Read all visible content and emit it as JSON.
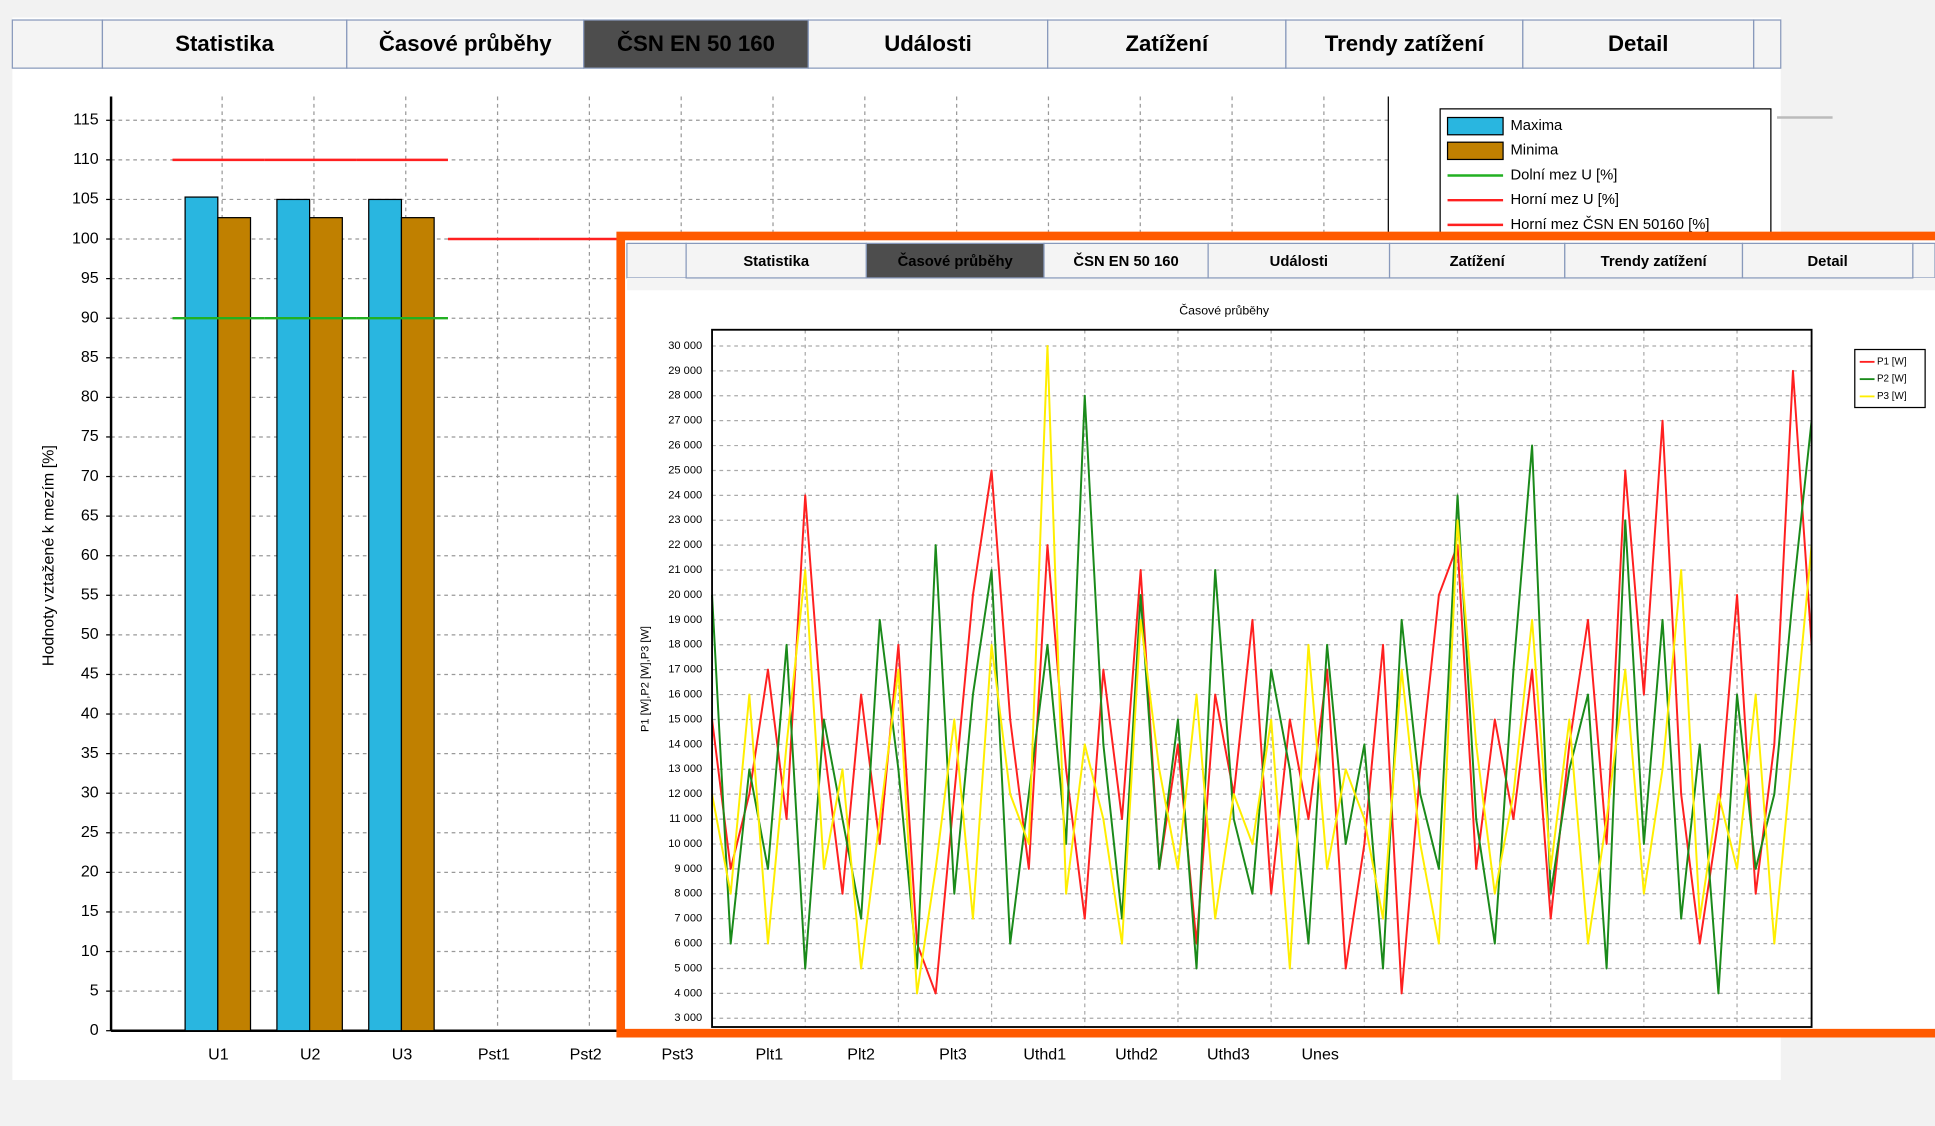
{
  "main_tabs": {
    "items": [
      "Statistika",
      "Časové průběhy",
      "ČSN EN 50 160",
      "Události",
      "Zatížení",
      "Trendy zatížení",
      "Detail"
    ],
    "active": 2
  },
  "overlay_tabs": {
    "items": [
      "Statistika",
      "Časové průběhy",
      "ČSN EN 50 160",
      "Události",
      "Zatížení",
      "Trendy zatížení",
      "Detail"
    ],
    "active": 1
  },
  "chart_data": [
    {
      "type": "bar",
      "ylabel": "Hodnoty vztažené k mezím [%]",
      "categories": [
        "U1",
        "U2",
        "U3",
        "Pst1",
        "Pst2",
        "Pst3",
        "Plt1",
        "Plt2",
        "Plt3",
        "Uthd1",
        "Uthd2",
        "Uthd3",
        "Unes"
      ],
      "series": [
        {
          "name": "Maxima",
          "type": "bar",
          "color": "#29b6e0",
          "values": [
            105.3,
            105,
            105,
            null,
            null,
            null,
            null,
            null,
            null,
            null,
            null,
            null,
            null
          ]
        },
        {
          "name": "Minima",
          "type": "bar",
          "color": "#c08000",
          "values": [
            102.7,
            102.7,
            102.7,
            null,
            null,
            null,
            null,
            null,
            null,
            null,
            null,
            null,
            null
          ]
        },
        {
          "name": "Dolní mez U [%]",
          "type": "line",
          "color": "#22b022",
          "values": [
            90,
            90,
            90,
            null,
            null,
            null,
            null,
            null,
            null,
            null,
            null,
            null,
            null
          ]
        },
        {
          "name": "Horní mez U [%]",
          "type": "line",
          "color": "#ff2020",
          "values": [
            110,
            110,
            110,
            null,
            null,
            null,
            null,
            null,
            null,
            null,
            null,
            null,
            null
          ]
        },
        {
          "name": "Horní mez ČSN EN 50160 [%]",
          "type": "line",
          "color": "#ff2020",
          "values": [
            null,
            null,
            null,
            100,
            100,
            100,
            100,
            100,
            100,
            100,
            100,
            100,
            100
          ]
        }
      ],
      "ylim": [
        0,
        118
      ],
      "yticks": [
        0,
        5,
        10,
        15,
        20,
        25,
        30,
        35,
        40,
        45,
        50,
        55,
        60,
        65,
        70,
        75,
        80,
        85,
        90,
        95,
        100,
        105,
        110,
        115
      ],
      "grid": true,
      "legend": "top-right"
    },
    {
      "type": "line",
      "title": "Časové průběhy",
      "ylabel": "P1 [W],P2 [W],P3 [W]",
      "x": [
        0,
        1,
        2,
        3,
        4,
        5,
        6,
        7,
        8,
        9,
        10,
        11,
        12,
        13,
        14,
        15,
        16,
        17,
        18,
        19,
        20,
        21,
        22,
        23,
        24,
        25,
        26,
        27,
        28,
        29,
        30,
        31,
        32,
        33,
        34,
        35,
        36,
        37,
        38,
        39,
        40,
        41,
        42,
        43,
        44,
        45,
        46,
        47,
        48,
        49,
        50,
        51,
        52,
        53,
        54,
        55,
        56,
        57,
        58,
        59
      ],
      "xlim": [
        0,
        59
      ],
      "xticks": [
        0,
        5,
        10,
        15,
        20,
        25,
        30,
        35,
        40,
        45,
        50,
        55
      ],
      "series": [
        {
          "name": "P1 [W]",
          "color": "#ff2020",
          "values": [
            15000,
            9000,
            12000,
            17000,
            11000,
            24000,
            14000,
            8000,
            16000,
            10000,
            18000,
            6000,
            4000,
            12000,
            20000,
            25000,
            15000,
            9000,
            22000,
            13000,
            7000,
            17000,
            11000,
            21000,
            9000,
            14000,
            6000,
            16000,
            12000,
            19000,
            8000,
            15000,
            11000,
            17000,
            5000,
            10000,
            18000,
            4000,
            13000,
            20000,
            22000,
            9000,
            15000,
            11000,
            17000,
            7000,
            14000,
            19000,
            10000,
            25000,
            16000,
            27000,
            12000,
            6000,
            11000,
            20000,
            8000,
            14000,
            29000,
            18000
          ]
        },
        {
          "name": "P2 [W]",
          "color": "#1a8a1a",
          "values": [
            20000,
            6000,
            13000,
            9000,
            18000,
            5000,
            15000,
            11000,
            7000,
            19000,
            13000,
            5000,
            22000,
            8000,
            16000,
            21000,
            6000,
            12000,
            18000,
            10000,
            28000,
            14000,
            7000,
            20000,
            9000,
            15000,
            5000,
            21000,
            11000,
            8000,
            17000,
            13000,
            6000,
            18000,
            10000,
            14000,
            5000,
            19000,
            12000,
            9000,
            24000,
            11000,
            6000,
            17000,
            26000,
            8000,
            13000,
            16000,
            5000,
            23000,
            10000,
            19000,
            7000,
            14000,
            4000,
            16000,
            9000,
            12000,
            20000,
            27000
          ]
        },
        {
          "name": "P3 [W]",
          "color": "#ffee00",
          "values": [
            12000,
            8000,
            16000,
            6000,
            14000,
            21000,
            9000,
            13000,
            5000,
            11000,
            17000,
            4000,
            9000,
            15000,
            7000,
            18000,
            12000,
            10000,
            30000,
            8000,
            14000,
            11000,
            6000,
            19000,
            13000,
            9000,
            16000,
            7000,
            12000,
            10000,
            15000,
            5000,
            18000,
            9000,
            13000,
            11000,
            7000,
            17000,
            10000,
            6000,
            23000,
            14000,
            8000,
            12000,
            19000,
            9000,
            15000,
            6000,
            11000,
            17000,
            8000,
            13000,
            21000,
            7000,
            12000,
            9000,
            16000,
            6000,
            14000,
            22000
          ]
        }
      ],
      "ylim": [
        2650,
        30650
      ],
      "yticks": [
        {
          "value": 3000,
          "label": "3 000"
        },
        {
          "value": 4000,
          "label": "4 000"
        },
        {
          "value": 5000,
          "label": "5 000"
        },
        {
          "value": 6000,
          "label": "6 000"
        },
        {
          "value": 7000,
          "label": "7 000"
        },
        {
          "value": 8000,
          "label": "8 000"
        },
        {
          "value": 9000,
          "label": "9 000"
        },
        {
          "value": 10000,
          "label": "10 000"
        },
        {
          "value": 11000,
          "label": "11 000"
        },
        {
          "value": 12000,
          "label": "12 000"
        },
        {
          "value": 13000,
          "label": "13 000"
        },
        {
          "value": 14000,
          "label": "14 000"
        },
        {
          "value": 15000,
          "label": "15 000"
        },
        {
          "value": 16000,
          "label": "16 000"
        },
        {
          "value": 17000,
          "label": "17 000"
        },
        {
          "value": 18000,
          "label": "18 000"
        },
        {
          "value": 19000,
          "label": "19 000"
        },
        {
          "value": 20000,
          "label": "20 000"
        },
        {
          "value": 21000,
          "label": "21 000"
        },
        {
          "value": 22000,
          "label": "22 000"
        },
        {
          "value": 23000,
          "label": "23 000"
        },
        {
          "value": 24000,
          "label": "24 000"
        },
        {
          "value": 25000,
          "label": "25 000"
        },
        {
          "value": 26000,
          "label": "26 000"
        },
        {
          "value": 27000,
          "label": "27 000"
        },
        {
          "value": 28000,
          "label": "28 000"
        },
        {
          "value": 29000,
          "label": "29 000"
        },
        {
          "value": 30000,
          "label": "30 000"
        }
      ],
      "grid": true,
      "legend": "right"
    }
  ]
}
